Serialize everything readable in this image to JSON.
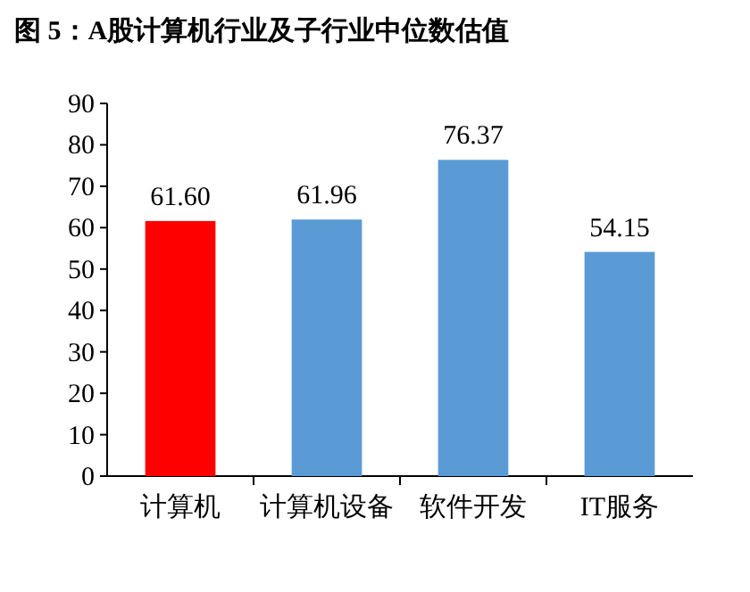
{
  "chart_data": {
    "type": "bar",
    "title": "图 5：A股计算机行业及子行业中位数估值",
    "categories": [
      "计算机",
      "计算机设备",
      "软件开发",
      "IT服务"
    ],
    "values": [
      61.6,
      61.96,
      76.37,
      54.15
    ],
    "colors": [
      "#ff0000",
      "#5b9bd5",
      "#5b9bd5",
      "#5b9bd5"
    ],
    "value_labels": [
      "61.60",
      "61.96",
      "76.37",
      "54.15"
    ],
    "ylim": [
      0,
      90
    ],
    "yticks": [
      0,
      10,
      20,
      30,
      40,
      50,
      60,
      70,
      80,
      90
    ],
    "grid": false
  }
}
